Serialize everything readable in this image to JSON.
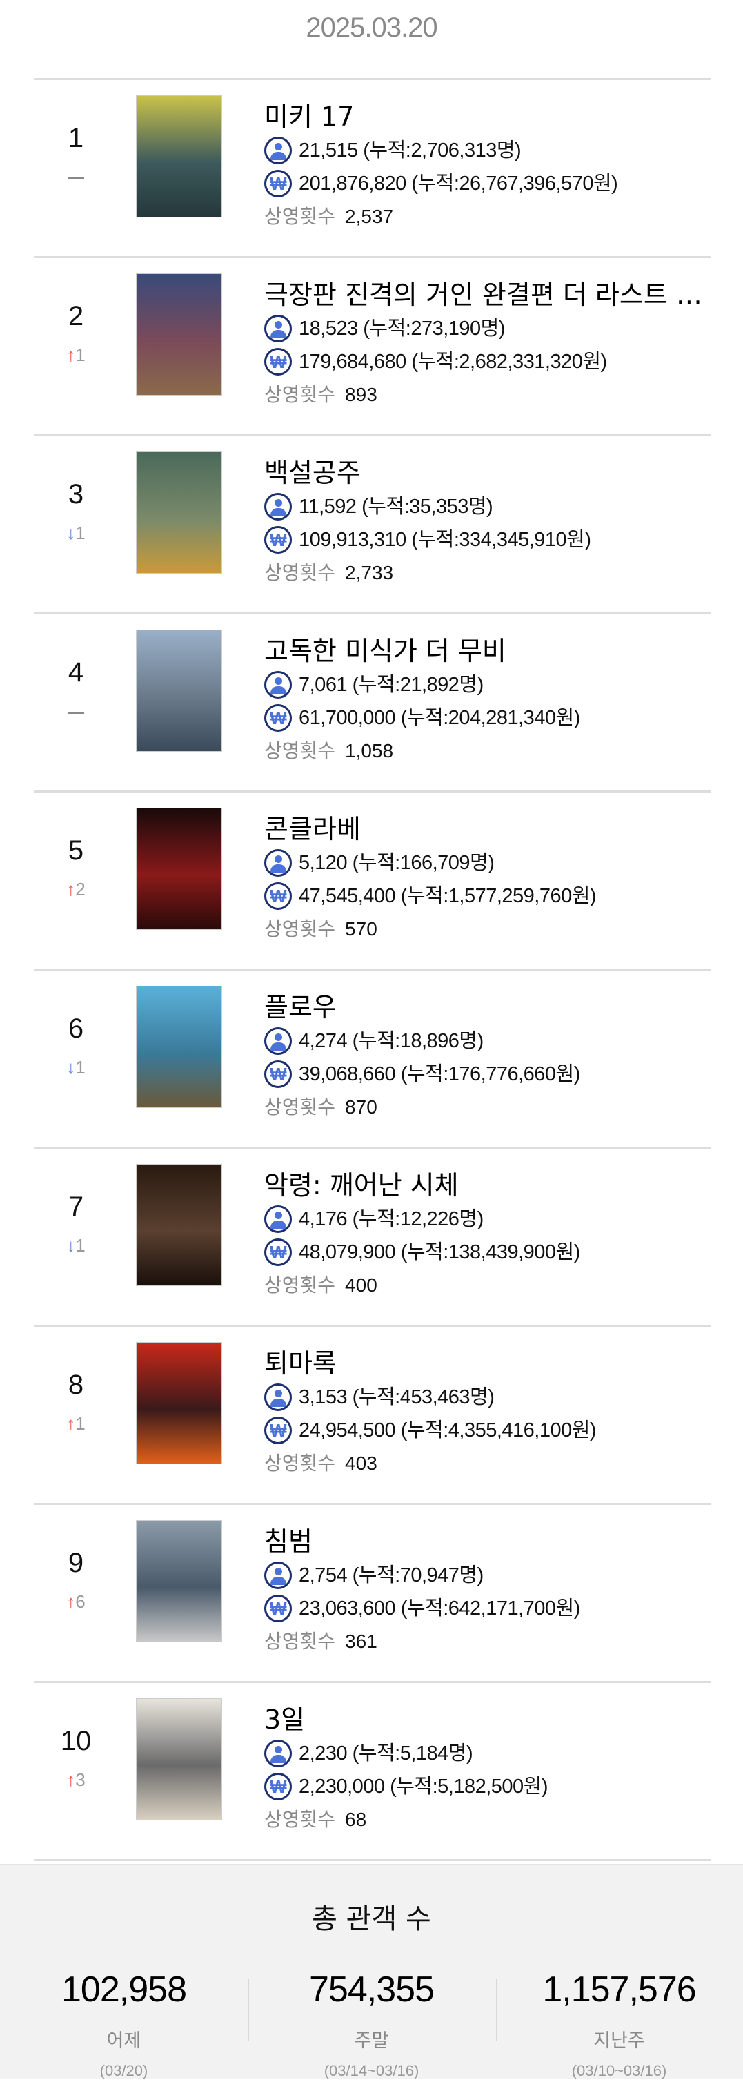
{
  "header": {
    "date": "2025.03.20"
  },
  "labels": {
    "screenings": "상영횟수"
  },
  "movies": [
    {
      "rank": "1",
      "change": {
        "dir": "none",
        "value": ""
      },
      "title": "미키 17",
      "audience": "21,515 (누적:2,706,313명)",
      "sales": "201,876,820 (누적:26,767,396,570원)",
      "screenings": "2,537",
      "poster_colors": [
        "#c9c24a",
        "#3e5a5c",
        "#24383a"
      ]
    },
    {
      "rank": "2",
      "change": {
        "dir": "up",
        "value": "1"
      },
      "title": "극장판 진격의 거인 완결편 더 라스트 어택",
      "audience": "18,523 (누적:273,190명)",
      "sales": "179,684,680 (누적:2,682,331,320원)",
      "screenings": "893",
      "poster_colors": [
        "#3a4a7a",
        "#7a4a5a",
        "#8a6a4a"
      ]
    },
    {
      "rank": "3",
      "change": {
        "dir": "down",
        "value": "1"
      },
      "title": "백설공주",
      "audience": "11,592 (누적:35,353명)",
      "sales": "109,913,310 (누적:334,345,910원)",
      "screenings": "2,733",
      "poster_colors": [
        "#4a6a5a",
        "#7a8a6a",
        "#c89a3a"
      ]
    },
    {
      "rank": "4",
      "change": {
        "dir": "none",
        "value": ""
      },
      "title": "고독한 미식가 더 무비",
      "audience": "7,061 (누적:21,892명)",
      "sales": "61,700,000 (누적:204,281,340원)",
      "screenings": "1,058",
      "poster_colors": [
        "#9ab0c8",
        "#6a7a8a",
        "#3a4a5a"
      ]
    },
    {
      "rank": "5",
      "change": {
        "dir": "up",
        "value": "2"
      },
      "title": "콘클라베",
      "audience": "5,120 (누적:166,709명)",
      "sales": "47,545,400 (누적:1,577,259,760원)",
      "screenings": "570",
      "poster_colors": [
        "#1a0a0a",
        "#8a1a1a",
        "#2a0a0a"
      ]
    },
    {
      "rank": "6",
      "change": {
        "dir": "down",
        "value": "1"
      },
      "title": "플로우",
      "audience": "4,274 (누적:18,896명)",
      "sales": "39,068,660 (누적:176,776,660원)",
      "screenings": "870",
      "poster_colors": [
        "#5ab0d8",
        "#3a7a9a",
        "#6a5a3a"
      ]
    },
    {
      "rank": "7",
      "change": {
        "dir": "down",
        "value": "1"
      },
      "title": "악령: 깨어난 시체",
      "audience": "4,176 (누적:12,226명)",
      "sales": "48,079,900 (누적:138,439,900원)",
      "screenings": "400",
      "poster_colors": [
        "#2a1a10",
        "#5a4030",
        "#1a100a"
      ]
    },
    {
      "rank": "8",
      "change": {
        "dir": "up",
        "value": "1"
      },
      "title": "퇴마록",
      "audience": "3,153 (누적:453,463명)",
      "sales": "24,954,500 (누적:4,355,416,100원)",
      "screenings": "403",
      "poster_colors": [
        "#c8281a",
        "#3a1a1a",
        "#e0601a"
      ]
    },
    {
      "rank": "9",
      "change": {
        "dir": "up",
        "value": "6"
      },
      "title": "침범",
      "audience": "2,754 (누적:70,947명)",
      "sales": "23,063,600 (누적:642,171,700원)",
      "screenings": "361",
      "poster_colors": [
        "#8a9aa8",
        "#4a5a6a",
        "#c8c8c8"
      ]
    },
    {
      "rank": "10",
      "change": {
        "dir": "up",
        "value": "3"
      },
      "title": "3일",
      "audience": "2,230 (누적:5,184명)",
      "sales": "2,230,000 (누적:5,182,500원)",
      "screenings": "68",
      "poster_colors": [
        "#e8e4dc",
        "#6a6a6a",
        "#d8d0c0"
      ]
    }
  ],
  "footer": {
    "title": "총 관객 수",
    "stats": [
      {
        "value": "102,958",
        "label": "어제",
        "range": "(03/20)"
      },
      {
        "value": "754,355",
        "label": "주말",
        "range": "(03/14~03/16)"
      },
      {
        "value": "1,157,576",
        "label": "지난주",
        "range": "(03/10~03/16)"
      }
    ]
  },
  "colors": {
    "up": "#f0605a",
    "down": "#6f8fe0",
    "icon": "#4a72d8"
  }
}
